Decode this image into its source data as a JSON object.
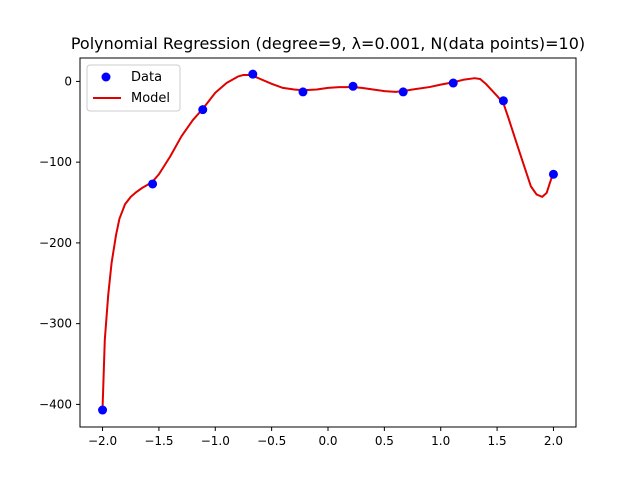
{
  "chart_data": {
    "type": "scatter",
    "title": "Polynomial Regression (degree=9, λ=0.001, N(data points)=10)",
    "xlabel": "",
    "ylabel": "",
    "xlim": [
      -2.2,
      2.2
    ],
    "ylim": [
      -428,
      29
    ],
    "xticks": [
      -2.0,
      -1.5,
      -1.0,
      -0.5,
      0.0,
      0.5,
      1.0,
      1.5,
      2.0
    ],
    "xtick_labels": [
      "−2.0",
      "−1.5",
      "−1.0",
      "−0.5",
      "0.0",
      "0.5",
      "1.0",
      "1.5",
      "2.0"
    ],
    "yticks": [
      0,
      -100,
      -200,
      -300,
      -400
    ],
    "ytick_labels": [
      "0",
      "−100",
      "−200",
      "−300",
      "−400"
    ],
    "grid": false,
    "legend": {
      "position": "top-left",
      "entries": [
        "Data",
        "Model"
      ]
    },
    "series": [
      {
        "name": "Data",
        "kind": "scatter",
        "color": "#0000ff",
        "x": [
          -2.0,
          -1.556,
          -1.111,
          -0.667,
          -0.222,
          0.222,
          0.667,
          1.111,
          1.556,
          2.0
        ],
        "y": [
          -407,
          -127,
          -35,
          9,
          -13,
          -6,
          -13,
          -2,
          -24,
          -115
        ]
      },
      {
        "name": "Model",
        "kind": "line",
        "color": "#e00000",
        "x": [
          -2.0,
          -1.98,
          -1.95,
          -1.92,
          -1.88,
          -1.85,
          -1.8,
          -1.75,
          -1.7,
          -1.65,
          -1.6,
          -1.556,
          -1.5,
          -1.4,
          -1.3,
          -1.2,
          -1.111,
          -1.0,
          -0.9,
          -0.8,
          -0.75,
          -0.7,
          -0.667,
          -0.6,
          -0.5,
          -0.4,
          -0.3,
          -0.222,
          -0.1,
          0.0,
          0.1,
          0.222,
          0.3,
          0.4,
          0.5,
          0.6,
          0.667,
          0.75,
          0.9,
          1.0,
          1.111,
          1.2,
          1.3,
          1.35,
          1.4,
          1.5,
          1.556,
          1.6,
          1.7,
          1.8,
          1.85,
          1.9,
          1.94,
          1.97,
          2.0
        ],
        "y": [
          -405,
          -320,
          -265,
          -225,
          -190,
          -170,
          -152,
          -143,
          -137,
          -132,
          -128,
          -124,
          -115,
          -93,
          -68,
          -48,
          -34,
          -14,
          -2,
          6,
          8,
          8,
          7,
          3,
          -3,
          -8,
          -10,
          -11,
          -10,
          -8,
          -7,
          -7,
          -8,
          -10,
          -12,
          -13,
          -12,
          -10,
          -7,
          -4,
          -1,
          2,
          4,
          3,
          -3,
          -18,
          -27,
          -45,
          -88,
          -130,
          -140,
          -143,
          -138,
          -125,
          -113
        ]
      }
    ]
  }
}
